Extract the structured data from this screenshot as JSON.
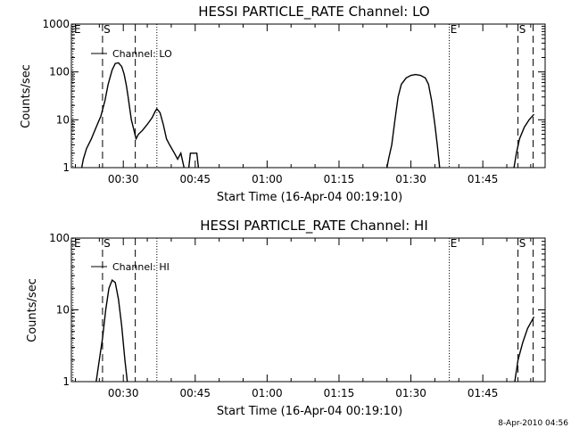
{
  "chart_data": [
    {
      "type": "line",
      "title": "HESSI PARTICLE_RATE Channel: LO",
      "xlabel": "Start Time (16-Apr-04 00:19:10)",
      "ylabel": "Counts/sec",
      "yscale": "log",
      "ylim": [
        1,
        1000
      ],
      "xlim": [
        "00:19:10",
        "01:58:00"
      ],
      "x_ticks": [
        "00:30",
        "00:45",
        "01:00",
        "01:15",
        "01:30",
        "01:45"
      ],
      "y_ticks": [
        "1",
        "10",
        "100",
        "1000"
      ],
      "legend": "Channel: LO",
      "legend_position": "top-left",
      "markers": [
        {
          "label": "E",
          "time": "00:19:30",
          "style": "dotted"
        },
        {
          "label": "S",
          "time": "00:25:40",
          "style": "dashed"
        },
        {
          "label": "",
          "time": "00:32:30",
          "style": "dashed"
        },
        {
          "label": "",
          "time": "00:37:00",
          "style": "dotted"
        },
        {
          "label": "E",
          "time": "01:38:00",
          "style": "dotted"
        },
        {
          "label": "S",
          "time": "01:52:20",
          "style": "dashed"
        },
        {
          "label": "",
          "time": "01:55:30",
          "style": "dashed"
        }
      ],
      "series": [
        {
          "name": "Channel: LO",
          "segments": [
            [
              [
                "00:21:20",
                1
              ],
              [
                "00:21:40",
                1.5
              ],
              [
                "00:22:20",
                2.5
              ],
              [
                "00:23:20",
                4
              ],
              [
                "00:24:20",
                7
              ],
              [
                "00:25:20",
                12
              ],
              [
                "00:26:10",
                25
              ],
              [
                "00:26:50",
                55
              ],
              [
                "00:27:40",
                110
              ],
              [
                "00:28:20",
                150
              ],
              [
                "00:29:00",
                155
              ],
              [
                "00:29:40",
                130
              ],
              [
                "00:30:10",
                90
              ],
              [
                "00:30:40",
                50
              ],
              [
                "00:31:00",
                30
              ],
              [
                "00:31:40",
                10
              ],
              [
                "00:32:20",
                5.5
              ],
              [
                "00:32:40",
                4
              ],
              [
                "00:33:10",
                5
              ],
              [
                "00:34:00",
                6
              ],
              [
                "00:35:00",
                8
              ],
              [
                "00:36:00",
                11
              ],
              [
                "00:36:40",
                15
              ],
              [
                "00:37:00",
                17
              ],
              [
                "00:37:40",
                14
              ],
              [
                "00:38:20",
                8
              ],
              [
                "00:39:00",
                4
              ],
              [
                "00:39:40",
                3
              ],
              [
                "00:40:40",
                2
              ],
              [
                "00:41:20",
                1.5
              ],
              [
                "00:42:00",
                2
              ],
              [
                "00:42:40",
                1
              ]
            ],
            [
              [
                "00:43:40",
                1
              ],
              [
                "00:44:00",
                2
              ],
              [
                "00:45:20",
                2
              ],
              [
                "00:45:40",
                1
              ]
            ],
            [
              [
                "01:25:00",
                1
              ],
              [
                "01:25:20",
                1.5
              ],
              [
                "01:26:00",
                3
              ],
              [
                "01:26:40",
                10
              ],
              [
                "01:27:20",
                30
              ],
              [
                "01:28:00",
                55
              ],
              [
                "01:29:00",
                75
              ],
              [
                "01:30:00",
                85
              ],
              [
                "01:31:00",
                88
              ],
              [
                "01:32:00",
                85
              ],
              [
                "01:33:00",
                75
              ],
              [
                "01:33:40",
                55
              ],
              [
                "01:34:20",
                25
              ],
              [
                "01:35:00",
                8
              ],
              [
                "01:35:30",
                3
              ],
              [
                "01:36:00",
                1
              ]
            ],
            [
              [
                "01:51:30",
                1
              ],
              [
                "01:52:00",
                2
              ],
              [
                "01:52:40",
                4
              ],
              [
                "01:53:40",
                7
              ],
              [
                "01:54:40",
                10
              ],
              [
                "01:55:40",
                13
              ]
            ]
          ]
        }
      ]
    },
    {
      "type": "line",
      "title": "HESSI PARTICLE_RATE Channel: HI",
      "xlabel": "Start Time (16-Apr-04 00:19:10)",
      "ylabel": "Counts/sec",
      "yscale": "log",
      "ylim": [
        1,
        100
      ],
      "xlim": [
        "00:19:10",
        "01:58:00"
      ],
      "x_ticks": [
        "00:30",
        "00:45",
        "01:00",
        "01:15",
        "01:30",
        "01:45"
      ],
      "y_ticks": [
        "1",
        "10",
        "100"
      ],
      "legend": "Channel: HI",
      "legend_position": "top-left",
      "markers": [
        {
          "label": "E",
          "time": "00:19:30",
          "style": "dotted"
        },
        {
          "label": "S",
          "time": "00:25:40",
          "style": "dashed"
        },
        {
          "label": "",
          "time": "00:32:30",
          "style": "dashed"
        },
        {
          "label": "",
          "time": "00:37:00",
          "style": "dotted"
        },
        {
          "label": "E",
          "time": "01:38:00",
          "style": "dotted"
        },
        {
          "label": "S",
          "time": "01:52:20",
          "style": "dashed"
        },
        {
          "label": "",
          "time": "01:55:30",
          "style": "dashed"
        }
      ],
      "series": [
        {
          "name": "Channel: HI",
          "segments": [
            [
              [
                "00:24:20",
                1
              ],
              [
                "00:25:00",
                2
              ],
              [
                "00:25:40",
                4
              ],
              [
                "00:26:20",
                10
              ],
              [
                "00:27:00",
                20
              ],
              [
                "00:27:40",
                26
              ],
              [
                "00:28:20",
                24
              ],
              [
                "00:29:00",
                14
              ],
              [
                "00:29:40",
                6
              ],
              [
                "00:30:20",
                2
              ],
              [
                "00:30:50",
                1
              ]
            ],
            [
              [
                "01:51:40",
                1
              ],
              [
                "01:52:20",
                2
              ],
              [
                "01:53:20",
                3.5
              ],
              [
                "01:54:20",
                5.5
              ],
              [
                "01:55:40",
                8
              ]
            ]
          ]
        }
      ]
    }
  ],
  "footer_timestamp": "8-Apr-2010 04:56"
}
